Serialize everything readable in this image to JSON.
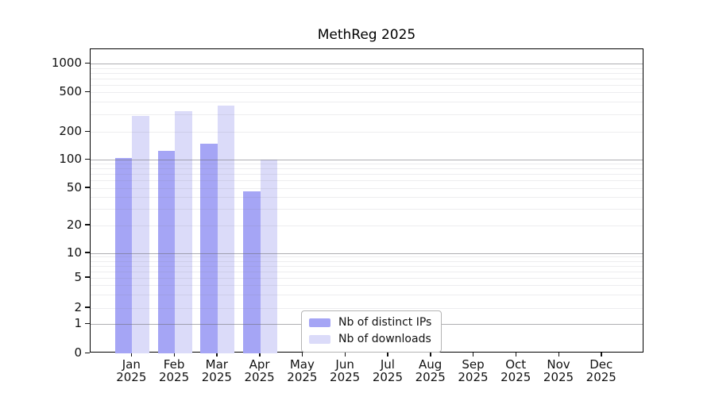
{
  "chart_data": {
    "type": "bar",
    "title": "MethReg 2025",
    "categories": [
      "Jan",
      "Feb",
      "Mar",
      "Apr",
      "May",
      "Jun",
      "Jul",
      "Aug",
      "Sep",
      "Oct",
      "Nov",
      "Dec"
    ],
    "year_label": "2025",
    "series": [
      {
        "name": "Nb of distinct IPs",
        "color": "#a5a5f5",
        "values": [
          105,
          124,
          148,
          46,
          null,
          null,
          null,
          null,
          null,
          null,
          null,
          null
        ]
      },
      {
        "name": "Nb of downloads",
        "color": "#dbdbf9",
        "values": [
          290,
          325,
          370,
          100,
          null,
          null,
          null,
          null,
          null,
          null,
          null,
          null
        ]
      }
    ],
    "y_tick_labels": [
      "0",
      "1",
      "2",
      "5",
      "10",
      "20",
      "50",
      "100",
      "200",
      "500",
      "1000"
    ],
    "y_tick_values": [
      0,
      1,
      2,
      5,
      10,
      20,
      50,
      100,
      200,
      500,
      1000
    ],
    "y_scale": "log",
    "ylim": [
      0,
      1400
    ],
    "grid": "horizontal major at powers of 10, faint log minors",
    "legend_position": "inside bottom, left of center"
  }
}
